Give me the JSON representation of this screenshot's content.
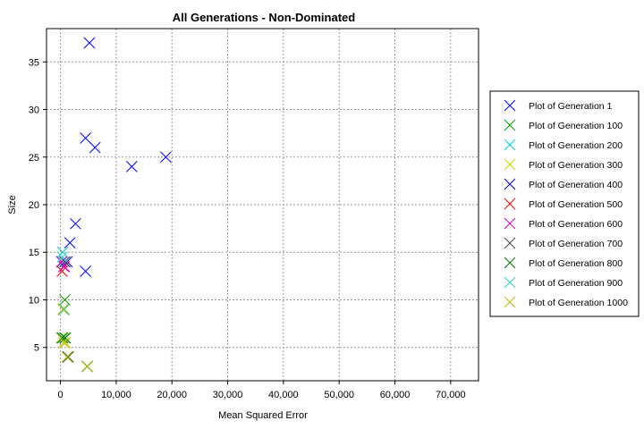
{
  "chart_data": {
    "type": "scatter",
    "title": "All Generations - Non-Dominated",
    "xlabel": "Mean Squared Error",
    "ylabel": "Size",
    "xlim": [
      -2500,
      75000
    ],
    "ylim": [
      1.5,
      38.5
    ],
    "xticks": [
      0,
      10000,
      20000,
      30000,
      40000,
      50000,
      60000,
      70000
    ],
    "xtick_labels": [
      "0",
      "10,000",
      "20,000",
      "30,000",
      "40,000",
      "50,000",
      "60,000",
      "70,000"
    ],
    "yticks": [
      5,
      10,
      15,
      20,
      25,
      30,
      35
    ],
    "ytick_labels": [
      "5",
      "10",
      "15",
      "20",
      "25",
      "30",
      "35"
    ],
    "grid": true,
    "legend_position": "right",
    "marker": "x",
    "series": [
      {
        "name": "Plot of Generation 1",
        "color": "#0000ff",
        "points": [
          [
            5200,
            37
          ],
          [
            4500,
            27
          ],
          [
            6200,
            26
          ],
          [
            12800,
            24
          ],
          [
            18900,
            25
          ],
          [
            2700,
            18
          ],
          [
            1700,
            16
          ],
          [
            4500,
            13
          ],
          [
            800,
            14
          ],
          [
            300,
            14
          ]
        ]
      },
      {
        "name": "Plot of Generation 100",
        "color": "#009900",
        "points": [
          [
            800,
            10
          ],
          [
            500,
            9
          ],
          [
            200,
            6
          ],
          [
            900,
            6
          ],
          [
            1300,
            4
          ],
          [
            4800,
            3
          ]
        ]
      },
      {
        "name": "Plot of Generation 200",
        "color": "#00cccc",
        "points": [
          [
            400,
            15
          ],
          [
            300,
            14
          ]
        ]
      },
      {
        "name": "Plot of Generation 300",
        "color": "#cccc00",
        "points": [
          [
            700,
            9
          ],
          [
            300,
            6
          ],
          [
            900,
            5.5
          ],
          [
            1300,
            4
          ],
          [
            4800,
            3
          ]
        ]
      },
      {
        "name": "Plot of Generation 400",
        "color": "#0000cc",
        "points": [
          [
            1200,
            14
          ]
        ]
      },
      {
        "name": "Plot of Generation 500",
        "color": "#ff0000",
        "points": [
          [
            300,
            13
          ],
          [
            700,
            13.5
          ]
        ]
      },
      {
        "name": "Plot of Generation 600",
        "color": "#cc00cc",
        "points": [
          [
            200,
            14
          ],
          [
            600,
            13.5
          ]
        ]
      },
      {
        "name": "Plot of Generation 700",
        "color": "#444444",
        "points": [
          [
            800,
            14
          ],
          [
            1400,
            4
          ],
          [
            4800,
            3
          ]
        ]
      },
      {
        "name": "Plot of Generation 800",
        "color": "#007700",
        "points": [
          [
            600,
            9
          ],
          [
            400,
            6
          ],
          [
            800,
            6
          ],
          [
            1300,
            4
          ],
          [
            4800,
            3
          ]
        ]
      },
      {
        "name": "Plot of Generation 900",
        "color": "#33cccc",
        "points": [
          [
            350,
            14.5
          ],
          [
            700,
            9
          ]
        ]
      },
      {
        "name": "Plot of Generation 1000",
        "color": "#bbbb00",
        "points": [
          [
            500,
            9
          ],
          [
            600,
            5.5
          ],
          [
            1200,
            4
          ],
          [
            4800,
            3
          ]
        ]
      }
    ]
  }
}
